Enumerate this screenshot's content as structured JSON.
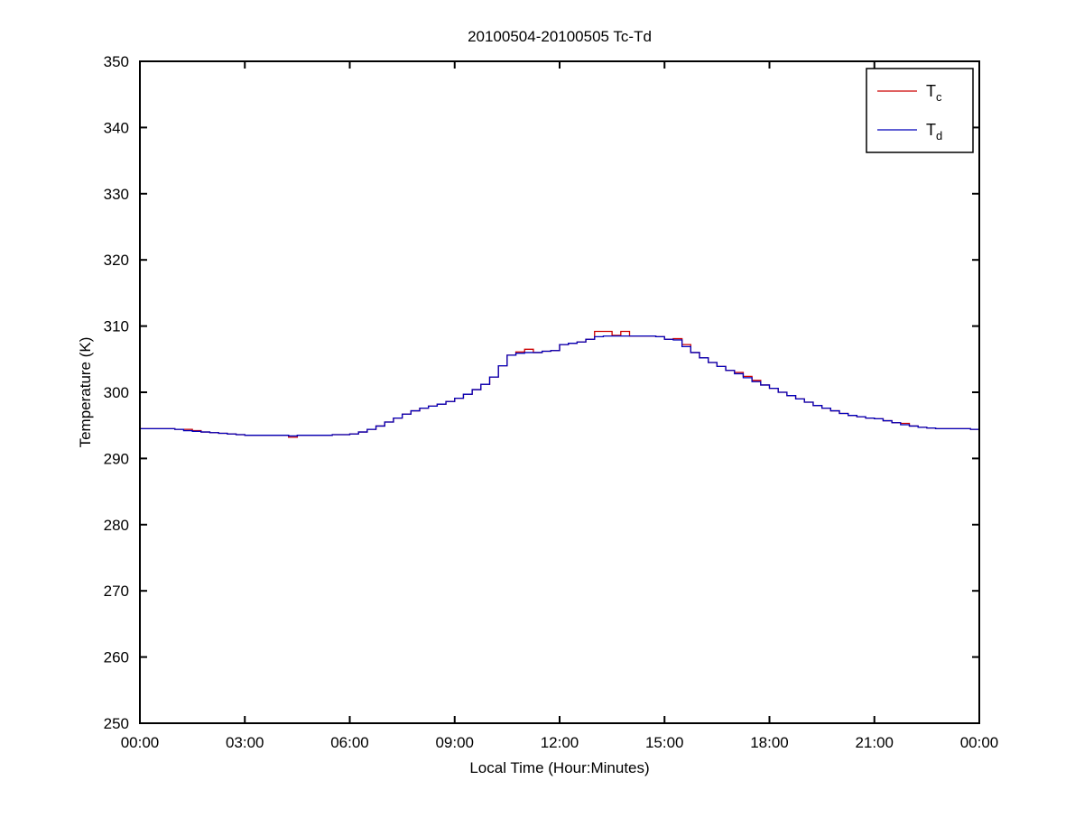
{
  "figure": {
    "background": "#ffffff",
    "axis_color": "#000000"
  },
  "chart_data": {
    "type": "line",
    "title": "20100504-20100505 Tc-Td",
    "xlabel": "Local Time (Hour:Minutes)",
    "ylabel": "Temperature (K)",
    "xlim": [
      0,
      24
    ],
    "ylim": [
      250,
      350
    ],
    "grid": false,
    "legend_position": "top-right",
    "x_step_hours": 0.25,
    "x_ticks": [
      0,
      3,
      6,
      9,
      12,
      15,
      18,
      21,
      24
    ],
    "x_tick_labels": [
      "00:00",
      "03:00",
      "06:00",
      "09:00",
      "12:00",
      "15:00",
      "18:00",
      "21:00",
      "00:00"
    ],
    "y_ticks": [
      250,
      260,
      270,
      280,
      290,
      300,
      310,
      320,
      330,
      340,
      350
    ],
    "y_tick_labels": [
      "250",
      "260",
      "270",
      "280",
      "290",
      "300",
      "310",
      "320",
      "330",
      "340",
      "350"
    ],
    "series": [
      {
        "name": "Tc",
        "label_base": "T",
        "label_sub": "c",
        "color": "#cc0000",
        "values": [
          294.5,
          294.5,
          294.5,
          294.5,
          294.4,
          294.4,
          294.2,
          294.0,
          293.9,
          293.8,
          293.7,
          293.6,
          293.5,
          293.5,
          293.5,
          293.5,
          293.5,
          293.2,
          293.5,
          293.5,
          293.5,
          293.5,
          293.6,
          293.6,
          293.7,
          294.0,
          294.4,
          294.9,
          295.5,
          296.1,
          296.7,
          297.2,
          297.6,
          297.9,
          298.2,
          298.6,
          299.1,
          299.7,
          300.4,
          301.2,
          302.3,
          304.0,
          305.6,
          306.1,
          306.5,
          306.0,
          306.2,
          306.3,
          307.2,
          307.4,
          307.6,
          308.0,
          309.2,
          309.2,
          308.6,
          309.2,
          308.5,
          308.5,
          308.5,
          308.4,
          308.0,
          308.1,
          307.2,
          306.0,
          305.2,
          304.5,
          303.9,
          303.3,
          303.0,
          302.4,
          301.8,
          301.1,
          300.6,
          300.0,
          299.5,
          299.0,
          298.5,
          298.0,
          297.6,
          297.2,
          296.8,
          296.5,
          296.3,
          296.1,
          296.0,
          295.7,
          295.4,
          295.3,
          294.9,
          294.7,
          294.6,
          294.5,
          294.5,
          294.5,
          294.5,
          294.4,
          294.4
        ]
      },
      {
        "name": "Td",
        "label_base": "T",
        "label_sub": "d",
        "color": "#0000bb",
        "values": [
          294.5,
          294.5,
          294.5,
          294.5,
          294.4,
          294.2,
          294.1,
          294.0,
          293.9,
          293.8,
          293.7,
          293.6,
          293.5,
          293.5,
          293.5,
          293.5,
          293.5,
          293.4,
          293.5,
          293.5,
          293.5,
          293.5,
          293.6,
          293.6,
          293.7,
          294.0,
          294.4,
          294.9,
          295.5,
          296.1,
          296.7,
          297.2,
          297.6,
          297.9,
          298.2,
          298.6,
          299.1,
          299.7,
          300.4,
          301.2,
          302.3,
          304.0,
          305.6,
          305.9,
          306.0,
          306.0,
          306.2,
          306.3,
          307.2,
          307.4,
          307.6,
          308.0,
          308.4,
          308.5,
          308.5,
          308.5,
          308.5,
          308.5,
          308.5,
          308.4,
          308.0,
          307.9,
          306.9,
          306.0,
          305.2,
          304.5,
          303.9,
          303.3,
          302.8,
          302.2,
          301.6,
          301.1,
          300.6,
          300.0,
          299.5,
          299.0,
          298.5,
          298.0,
          297.6,
          297.2,
          296.8,
          296.5,
          296.3,
          296.1,
          296.0,
          295.7,
          295.4,
          295.1,
          294.9,
          294.7,
          294.6,
          294.5,
          294.5,
          294.5,
          294.5,
          294.4,
          294.4
        ]
      }
    ]
  }
}
